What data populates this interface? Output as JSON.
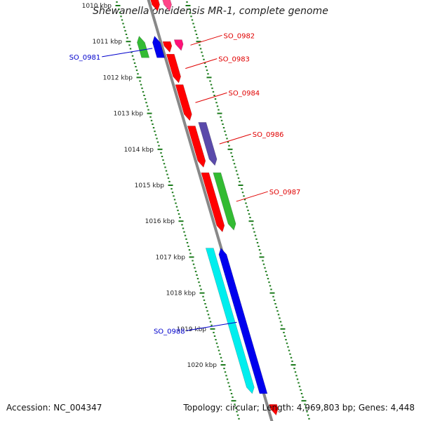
{
  "title": "Shewanella oneidensis MR-1, complete genome",
  "footer": {
    "accession": "Accession: NC_004347",
    "summary": "Topology: circular; Length: 4,969,803 bp; Genes: 4,448"
  },
  "colors": {
    "backbone": "#888888",
    "tick": "#1a7a1a",
    "red_label": "#e00000",
    "blue_label": "#0000cc"
  },
  "ticks": [
    {
      "label": "1010 kbp",
      "pos": 1010
    },
    {
      "label": "1011 kbp",
      "pos": 1011
    },
    {
      "label": "1012 kbp",
      "pos": 1012
    },
    {
      "label": "1013 kbp",
      "pos": 1013
    },
    {
      "label": "1014 kbp",
      "pos": 1014
    },
    {
      "label": "1015 kbp",
      "pos": 1015
    },
    {
      "label": "1016 kbp",
      "pos": 1016
    },
    {
      "label": "1017 kbp",
      "pos": 1017
    },
    {
      "label": "1018 kbp",
      "pos": 1018
    },
    {
      "label": "1019 kbp",
      "pos": 1019
    },
    {
      "label": "1020 kbp",
      "pos": 1020
    }
  ],
  "features": [
    {
      "id": "f-top-red",
      "lane": "near",
      "start": 1009.6,
      "end": 1010.15,
      "color": "#ff0000",
      "strand": "+",
      "label": ""
    },
    {
      "id": "f-top-pink",
      "lane": "mid",
      "start": 1009.6,
      "end": 1010.15,
      "color": "#ff4488",
      "strand": "+",
      "label": ""
    },
    {
      "id": "f-0981-green",
      "lane": "far-left",
      "start": 1010.85,
      "end": 1011.45,
      "color": "#33bb33",
      "strand": "-",
      "label": ""
    },
    {
      "id": "f-0981",
      "lane": "left",
      "start": 1010.85,
      "end": 1011.45,
      "color": "#0000ee",
      "strand": "-",
      "label": "SO_0981"
    },
    {
      "id": "f-0982",
      "lane": "mid",
      "start": 1010.95,
      "end": 1011.25,
      "color": "#ff1177",
      "strand": "+",
      "label": "SO_0982"
    },
    {
      "id": "f-0982b",
      "lane": "near",
      "start": 1011.0,
      "end": 1011.3,
      "color": "#ff0000",
      "strand": "+",
      "label": ""
    },
    {
      "id": "f-0983",
      "lane": "near",
      "start": 1011.35,
      "end": 1012.15,
      "color": "#ff0000",
      "strand": "+",
      "label": "SO_0983"
    },
    {
      "id": "f-0984",
      "lane": "near",
      "start": 1012.2,
      "end": 1013.2,
      "color": "#ff0000",
      "strand": "+",
      "label": "SO_0984"
    },
    {
      "id": "f-0985",
      "lane": "near",
      "start": 1013.35,
      "end": 1014.5,
      "color": "#ff0000",
      "strand": "+",
      "label": ""
    },
    {
      "id": "f-0986",
      "lane": "mid",
      "start": 1013.25,
      "end": 1014.45,
      "color": "#5a4aaa",
      "strand": "+",
      "label": "SO_0986"
    },
    {
      "id": "f-0987-red",
      "lane": "near",
      "start": 1014.65,
      "end": 1016.3,
      "color": "#ff0000",
      "strand": "+",
      "label": ""
    },
    {
      "id": "f-0987",
      "lane": "mid",
      "start": 1014.65,
      "end": 1016.25,
      "color": "#33bb33",
      "strand": "+",
      "label": "SO_0987"
    },
    {
      "id": "f-0988-cyan",
      "lane": "near-left",
      "start": 1016.75,
      "end": 1020.8,
      "color": "#00eeee",
      "strand": "+",
      "label": ""
    },
    {
      "id": "f-0988",
      "lane": "left-blue",
      "start": 1016.75,
      "end": 1020.8,
      "color": "#0000ee",
      "strand": "-",
      "label": "SO_0988"
    },
    {
      "id": "f-bottom-red",
      "lane": "near",
      "start": 1021.1,
      "end": 1021.4,
      "color": "#ff0000",
      "strand": "+",
      "label": ""
    }
  ]
}
